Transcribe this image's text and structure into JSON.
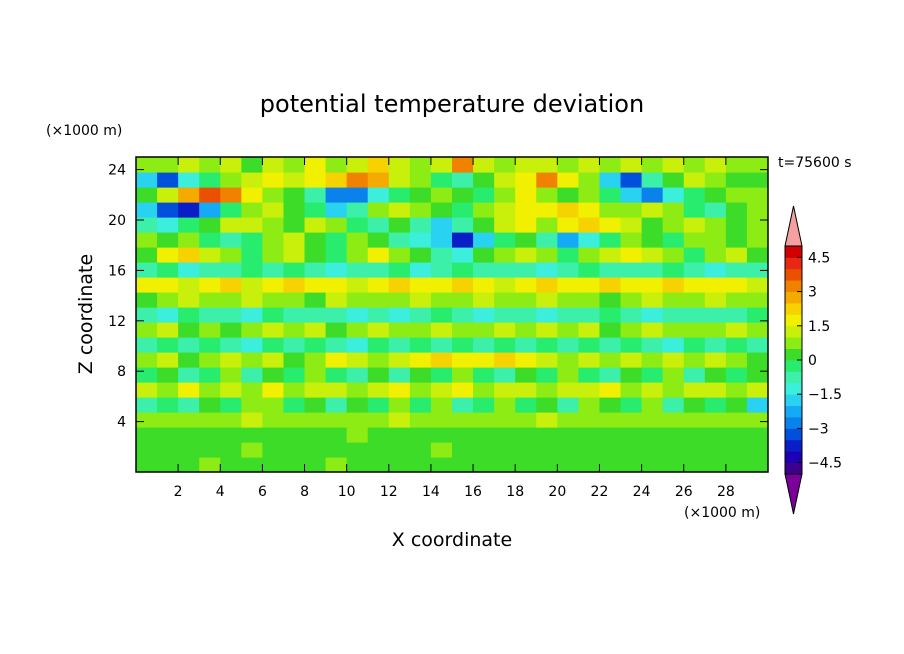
{
  "chart_data": {
    "type": "heatmap",
    "title": "potential temperature deviation",
    "xlabel": "X coordinate",
    "ylabel": "Z coordinate",
    "x_unit": "(×1000 m)",
    "y_unit": "(×1000 m)",
    "time_label": "t=75600 s",
    "xlim": [
      0,
      30
    ],
    "ylim": [
      0,
      25
    ],
    "x_ticks": [
      2,
      4,
      6,
      8,
      10,
      12,
      14,
      16,
      18,
      20,
      22,
      24,
      26,
      28
    ],
    "y_ticks": [
      4,
      8,
      12,
      16,
      20,
      24
    ],
    "colorbar": {
      "min": -5.0,
      "max": 5.0,
      "step": 0.5,
      "tick_values": [
        4.5,
        3,
        1.5,
        0,
        -1.5,
        -3,
        -4.5
      ],
      "tick_labels": [
        "4.5",
        "3",
        "1.5",
        "0",
        "−1.5",
        "−3",
        "−4.5"
      ],
      "colors": [
        "#7b0099",
        "#3c008c",
        "#1e00b4",
        "#0a1ec8",
        "#0050dc",
        "#0a82eb",
        "#14aaf5",
        "#28d2f0",
        "#3ceedc",
        "#3cf0aa",
        "#28ec6e",
        "#3cdc28",
        "#8cec14",
        "#c8f00a",
        "#f0f000",
        "#f5d200",
        "#f5aa00",
        "#f08200",
        "#eb5000",
        "#e62814",
        "#d20000",
        "#f5a0a0"
      ]
    },
    "field": [
      [
        0.2,
        0.3,
        0.1,
        0.5,
        0.4,
        0.2,
        0.1,
        0.2,
        0.3,
        0.5,
        0.2,
        0.1,
        0.2,
        0.4,
        0.3,
        0.2,
        0.1,
        0.3,
        0.2,
        0.4,
        0.3,
        0.2,
        0.1,
        0.4,
        0.2,
        0.3,
        0.2,
        0.1,
        0.2,
        0.3
      ],
      [
        0.1,
        0.2,
        0.4,
        0.2,
        0.3,
        0.5,
        0.3,
        0.1,
        0.2,
        0.3,
        0.4,
        0.2,
        0.3,
        0.2,
        0.5,
        0.1,
        0.2,
        0.4,
        0.3,
        0.2,
        0.1,
        0.3,
        0.4,
        0.2,
        0.3,
        0.1,
        0.4,
        0.2,
        0.3,
        0.1
      ],
      [
        0.3,
        0.1,
        0.2,
        0.3,
        0.1,
        0.4,
        0.2,
        0.3,
        0.1,
        0.2,
        0.5,
        0.3,
        0.1,
        0.2,
        0.3,
        0.4,
        0.2,
        0.1,
        0.3,
        0.2,
        0.4,
        0.1,
        0.2,
        0.3,
        0.1,
        0.2,
        0.3,
        0.4,
        0.1,
        0.2
      ],
      [
        0.8,
        0.6,
        0.9,
        0.5,
        0.7,
        1.0,
        0.6,
        0.8,
        0.5,
        0.9,
        0.7,
        0.6,
        1.1,
        0.8,
        0.5,
        0.7,
        0.9,
        0.6,
        0.8,
        1.0,
        0.5,
        0.7,
        0.9,
        0.6,
        0.8,
        0.7,
        0.5,
        0.9,
        0.6,
        0.8
      ],
      [
        -0.6,
        -0.3,
        -0.8,
        0.2,
        -0.4,
        0.6,
        0.9,
        -0.3,
        0.4,
        -0.7,
        0.3,
        -0.5,
        0.8,
        -0.2,
        0.5,
        -0.6,
        -0.3,
        0.7,
        -0.4,
        0.2,
        -0.8,
        0.5,
        0.1,
        -0.5,
        0.6,
        -0.9,
        0.3,
        -0.2,
        0.4,
        -1.8
      ],
      [
        1.2,
        0.8,
        1.5,
        0.6,
        1.3,
        0.9,
        1.6,
        0.7,
        1.1,
        1.4,
        0.8,
        1.2,
        1.5,
        0.6,
        1.3,
        1.7,
        0.9,
        1.1,
        1.4,
        0.7,
        1.2,
        1.0,
        1.5,
        0.8,
        1.3,
        0.9,
        1.1,
        1.4,
        0.7,
        1.0
      ],
      [
        -0.4,
        0.3,
        -0.7,
        -0.2,
        0.5,
        -0.8,
        0.2,
        -0.5,
        0.6,
        -0.3,
        -0.9,
        0.4,
        -0.6,
        0.1,
        -0.4,
        0.7,
        -0.2,
        -0.7,
        0.3,
        -0.5,
        0.6,
        -0.3,
        -0.8,
        0.2,
        -0.4,
        0.5,
        -0.6,
        0.2,
        -0.3,
        0.1
      ],
      [
        0.5,
        1.0,
        0.3,
        0.8,
        1.4,
        0.6,
        1.1,
        0.4,
        0.9,
        1.6,
        1.3,
        0.7,
        1.0,
        1.8,
        2.0,
        1.5,
        1.9,
        2.3,
        1.7,
        1.2,
        0.9,
        1.4,
        0.6,
        1.1,
        0.8,
        1.3,
        0.5,
        1.0,
        0.7,
        0.4
      ],
      [
        -0.8,
        -0.4,
        -1.0,
        -0.3,
        -0.6,
        -1.1,
        -0.5,
        -0.8,
        -0.3,
        -0.7,
        -1.2,
        -0.5,
        -0.9,
        -0.4,
        -0.6,
        -0.3,
        -0.8,
        -0.5,
        -1.0,
        -0.4,
        -0.7,
        -0.3,
        -0.9,
        -0.5,
        -0.6,
        -1.1,
        -0.4,
        -0.8,
        -0.5,
        -0.7
      ],
      [
        0.6,
        1.2,
        0.4,
        0.9,
        0.3,
        0.8,
        1.3,
        0.5,
        1.0,
        0.4,
        0.7,
        1.1,
        0.5,
        0.9,
        1.4,
        0.8,
        0.5,
        1.0,
        0.7,
        1.3,
        0.6,
        1.1,
        0.4,
        0.8,
        1.2,
        0.5,
        0.9,
        0.6,
        1.0,
        0.7
      ],
      [
        -0.6,
        -1.1,
        -0.4,
        -0.9,
        -0.7,
        -1.3,
        -0.5,
        -1.0,
        -0.6,
        -0.9,
        -1.2,
        -0.7,
        -1.4,
        -1.0,
        -0.5,
        -0.8,
        -1.1,
        -0.6,
        -0.9,
        -1.3,
        -0.7,
        -1.0,
        -0.5,
        -0.8,
        -1.1,
        -0.6,
        -0.9,
        -0.7,
        -1.0,
        -0.5
      ],
      [
        0.4,
        0.7,
        1.0,
        0.5,
        0.8,
        1.2,
        0.6,
        0.9,
        0.4,
        1.1,
        0.7,
        0.5,
        0.9,
        1.3,
        0.6,
        0.8,
        1.0,
        0.5,
        0.7,
        1.1,
        0.6,
        0.9,
        0.4,
        0.8,
        1.0,
        0.6,
        0.7,
        1.2,
        0.5,
        0.8
      ],
      [
        1.5,
        1.8,
        1.2,
        1.6,
        2.0,
        1.4,
        1.7,
        2.2,
        1.5,
        1.9,
        1.3,
        1.8,
        2.4,
        1.6,
        1.9,
        2.1,
        1.7,
        1.4,
        1.9,
        2.2,
        1.8,
        1.5,
        2.0,
        1.6,
        1.8,
        2.1,
        1.5,
        1.7,
        1.9,
        1.4
      ],
      [
        -0.8,
        -0.4,
        -1.2,
        -0.6,
        -0.9,
        -0.3,
        -1.0,
        -0.5,
        -0.8,
        -1.3,
        -0.6,
        -0.9,
        -0.4,
        -1.1,
        -0.7,
        -0.5,
        -1.0,
        -0.8,
        -0.6,
        -1.2,
        -0.7,
        -0.4,
        -0.9,
        -0.6,
        -1.0,
        -0.5,
        -0.8,
        -1.1,
        -0.6,
        -0.9
      ],
      [
        0.3,
        1.6,
        2.0,
        1.4,
        0.6,
        -0.2,
        0.8,
        1.2,
        0.4,
        -0.5,
        0.9,
        1.5,
        0.7,
        0.2,
        -0.8,
        -1.4,
        0.3,
        0.9,
        1.3,
        0.6,
        -0.3,
        0.8,
        1.4,
        1.8,
        1.2,
        0.5,
        -0.4,
        0.7,
        1.1,
        0.4
      ],
      [
        0.8,
        0.3,
        0.6,
        -0.4,
        -0.9,
        -0.3,
        0.5,
        1.0,
        0.4,
        -0.2,
        0.6,
        0.1,
        -0.6,
        -1.5,
        -2.0,
        -3.6,
        -1.8,
        -0.5,
        0.2,
        -1.0,
        -2.2,
        -1.2,
        -0.3,
        0.6,
        0.2,
        -0.4,
        0.5,
        0.9,
        0.3,
        0.7
      ],
      [
        -0.9,
        -1.2,
        -0.4,
        0.3,
        1.0,
        1.4,
        0.6,
        0.2,
        1.1,
        0.8,
        -0.3,
        -0.6,
        0.4,
        -1.0,
        -1.6,
        -0.6,
        0.3,
        1.2,
        1.6,
        0.9,
        1.5,
        2.1,
        1.8,
        1.0,
        0.4,
        0.8,
        1.3,
        0.6,
        0.2,
        0.5
      ],
      [
        -1.8,
        -3.4,
        -4.0,
        -2.2,
        -0.4,
        0.6,
        1.0,
        0.4,
        -0.5,
        -1.6,
        -0.8,
        0.6,
        1.3,
        0.9,
        0.3,
        -0.5,
        0.7,
        1.4,
        1.9,
        1.5,
        2.3,
        1.7,
        0.9,
        0.5,
        1.2,
        0.7,
        -0.3,
        -0.6,
        0.4,
        0.8
      ],
      [
        0.4,
        1.2,
        2.6,
        3.5,
        3.0,
        1.5,
        0.7,
        0.3,
        -0.6,
        -2.6,
        -3.0,
        -1.5,
        -0.4,
        0.3,
        0.7,
        0.2,
        -0.3,
        0.8,
        1.5,
        0.9,
        0.4,
        0.8,
        -0.5,
        -1.8,
        -2.6,
        -1.2,
        -0.3,
        0.4,
        0.9,
        0.6
      ],
      [
        -2.0,
        -3.2,
        -1.4,
        -0.3,
        0.5,
        1.2,
        1.6,
        1.0,
        1.6,
        2.2,
        3.3,
        2.5,
        1.3,
        0.5,
        -0.4,
        -0.8,
        0.3,
        1.0,
        1.6,
        3.0,
        1.7,
        0.5,
        -2.0,
        -3.2,
        -1.0,
        0.4,
        1.0,
        0.5,
        0.2,
        0.4
      ],
      [
        0.8,
        0.5,
        1.3,
        0.7,
        1.0,
        0.4,
        1.2,
        0.9,
        1.6,
        0.6,
        1.4,
        2.0,
        1.1,
        0.7,
        1.0,
        3.0,
        1.4,
        0.6,
        1.0,
        1.4,
        0.8,
        1.2,
        0.5,
        1.0,
        0.6,
        1.4,
        0.8,
        1.0,
        0.5,
        0.8
      ]
    ]
  }
}
